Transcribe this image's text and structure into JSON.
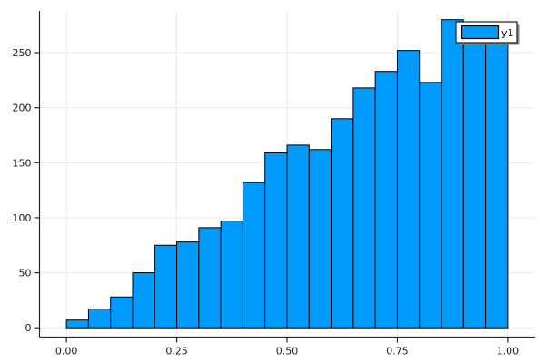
{
  "chart_data": {
    "type": "bar",
    "subtype": "histogram",
    "title": "",
    "xlabel": "",
    "ylabel": "",
    "bins": {
      "start": 0.0,
      "width": 0.05,
      "count": 20
    },
    "bin_edges": [
      0.0,
      0.05,
      0.1,
      0.15,
      0.2,
      0.25,
      0.3,
      0.35,
      0.4,
      0.45,
      0.5,
      0.55,
      0.6,
      0.65,
      0.7,
      0.75,
      0.8,
      0.85,
      0.9,
      0.95,
      1.0
    ],
    "series": [
      {
        "name": "y1",
        "values": [
          7,
          17,
          28,
          50,
          75,
          78,
          91,
          97,
          132,
          159,
          166,
          162,
          190,
          218,
          233,
          252,
          223,
          280,
          266,
          270
        ],
        "fill_color": "#009afa",
        "edge_color": "#000000"
      }
    ],
    "xticks": {
      "positions": [
        0.0,
        0.25,
        0.5,
        0.75,
        1.0
      ],
      "labels": [
        "0.00",
        "0.25",
        "0.50",
        "0.75",
        "1.00"
      ]
    },
    "yticks": {
      "positions": [
        0,
        50,
        100,
        150,
        200,
        250
      ],
      "labels": [
        "0",
        "50",
        "100",
        "150",
        "200",
        "250"
      ]
    },
    "xlim": [
      -0.061,
      1.062
    ],
    "ylim": [
      -8.5,
      288
    ],
    "grid": true,
    "legend": {
      "label": "y1",
      "position": "top-right"
    }
  },
  "colors": {
    "bar_fill": "#009afa",
    "bar_edge": "#000000",
    "grid": "#ebebeb",
    "spine": "#26282a",
    "tick_label": "#1c1c1c",
    "legend_bg": "#ffffff",
    "legend_border": "#1c1c1c",
    "legend_shadow": "#8a8a8a"
  }
}
